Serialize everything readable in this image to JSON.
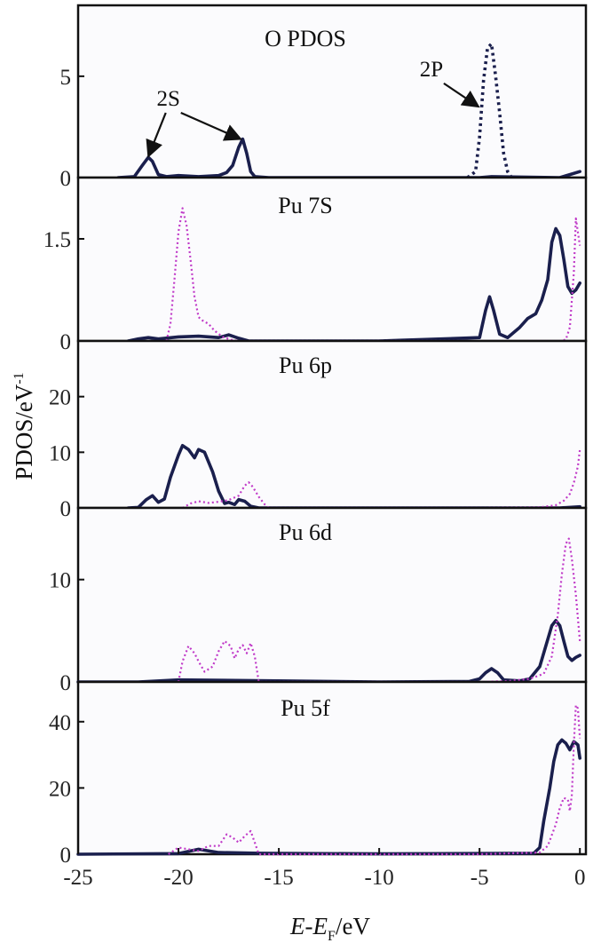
{
  "chart_data": {
    "type": "line",
    "title": "",
    "xlabel": {
      "italic": "E",
      "dash": "-",
      "italic2": "E",
      "sub": "F",
      "unit": "/eV"
    },
    "ylabel": {
      "main": "PDOS/eV",
      "sup": "-1"
    },
    "xlim": [
      -25,
      0.3
    ],
    "x_ticks": [
      -25,
      -20,
      -15,
      -10,
      -5,
      0
    ],
    "x_tick_labels": [
      "-25",
      "-20",
      "-15",
      "-10",
      "-5",
      "0"
    ],
    "colors": {
      "solid": "#1a1f4d",
      "dotted": "#c03ac8",
      "dotted_dark": "#1a1f4d",
      "frame": "#111111"
    },
    "panels": [
      {
        "name": "o-pdos",
        "label": "O PDOS",
        "ylim": [
          0,
          8.5
        ],
        "y_ticks": [
          0,
          5
        ],
        "y_tick_labels": [
          "0",
          "5"
        ],
        "annotations": [
          {
            "text": "2S",
            "x": -20.5,
            "y": 3.55,
            "arrows_to": [
              [
                -21.5,
                1.05
              ],
              [
                -16.9,
                1.9
              ]
            ]
          },
          {
            "text": "2P",
            "x": -7.4,
            "y": 5.0,
            "arrows_to": [
              [
                -5.05,
                3.5
              ]
            ]
          }
        ],
        "series": [
          {
            "name": "O 2s (solid)",
            "style": "solid",
            "color": "#1a1f4d",
            "x": [
              -23,
              -22.2,
              -21.8,
              -21.5,
              -21.3,
              -21.0,
              -20.6,
              -20.0,
              -19.0,
              -18.0,
              -17.6,
              -17.3,
              -17.0,
              -16.8,
              -16.6,
              -16.4,
              -16.2,
              -15.5,
              -10,
              -5,
              -4.4,
              -1.0,
              -0.5,
              0
            ],
            "y": [
              0,
              0.05,
              0.6,
              1.0,
              0.8,
              0.15,
              0.05,
              0.1,
              0.05,
              0.1,
              0.25,
              0.6,
              1.5,
              1.9,
              1.2,
              0.3,
              0.05,
              0,
              0,
              0,
              0.05,
              0,
              0.15,
              0.3
            ]
          },
          {
            "name": "O 2p (dotted)",
            "style": "dotted",
            "color": "#1a1f4d",
            "x": [
              -5.6,
              -5.2,
              -5.0,
              -4.8,
              -4.6,
              -4.4,
              -4.2,
              -4.0,
              -3.8,
              -3.6,
              -3.4
            ],
            "y": [
              0,
              0.3,
              2.0,
              4.8,
              6.4,
              6.6,
              5.0,
              3.2,
              1.2,
              0.3,
              0
            ]
          }
        ]
      },
      {
        "name": "pu-7s",
        "label": "Pu 7S",
        "ylim": [
          0,
          2.4
        ],
        "y_ticks": [
          0,
          1.5
        ],
        "y_tick_labels": [
          "0",
          "1.5"
        ],
        "annotations": [],
        "series": [
          {
            "name": "Pu 7s (solid)",
            "style": "solid",
            "color": "#1a1f4d",
            "x": [
              -22.5,
              -22,
              -21.5,
              -21,
              -20,
              -19,
              -18,
              -17.5,
              -17,
              -16.5,
              -15,
              -10,
              -5,
              -4.7,
              -4.5,
              -4.3,
              -4.0,
              -3.6,
              -3.0,
              -2.6,
              -2.2,
              -1.9,
              -1.6,
              -1.4,
              -1.2,
              -1.0,
              -0.8,
              -0.6,
              -0.4,
              -0.2,
              0
            ],
            "y": [
              0,
              0.03,
              0.05,
              0.03,
              0.06,
              0.07,
              0.05,
              0.09,
              0.04,
              0,
              0,
              0,
              0.05,
              0.45,
              0.65,
              0.45,
              0.1,
              0.05,
              0.2,
              0.33,
              0.4,
              0.6,
              0.9,
              1.45,
              1.65,
              1.55,
              1.2,
              0.8,
              0.7,
              0.75,
              0.85
            ]
          },
          {
            "name": "Pu 7s (dotted)",
            "style": "dotted",
            "color": "#c03ac8",
            "x": [
              -20.6,
              -20.4,
              -20.2,
              -20.0,
              -19.8,
              -19.6,
              -19.4,
              -19.2,
              -19.0,
              -18.8,
              -18.5,
              -18.2,
              -17.8,
              -17.4,
              -17.0,
              -1.0,
              -0.7,
              -0.5,
              -0.3,
              -0.2,
              0
            ],
            "y": [
              0,
              0.25,
              0.9,
              1.6,
              1.95,
              1.7,
              1.2,
              0.65,
              0.35,
              0.3,
              0.25,
              0.15,
              0.06,
              0.02,
              0,
              0,
              0.02,
              0.2,
              1.0,
              1.8,
              1.4
            ]
          }
        ]
      },
      {
        "name": "pu-6p",
        "label": "Pu 6p",
        "ylim": [
          0,
          30
        ],
        "y_ticks": [
          0,
          10,
          20
        ],
        "y_tick_labels": [
          "0",
          "10",
          "20"
        ],
        "annotations": [],
        "series": [
          {
            "name": "Pu 6p (solid)",
            "style": "solid",
            "color": "#1a1f4d",
            "x": [
              -22.5,
              -22,
              -21.6,
              -21.3,
              -21.0,
              -20.7,
              -20.4,
              -20.0,
              -19.8,
              -19.5,
              -19.2,
              -19.0,
              -18.7,
              -18.3,
              -18.0,
              -17.7,
              -17.5,
              -17.2,
              -17.0,
              -16.7,
              -16.4,
              -16.0,
              -10,
              -5,
              -1,
              0
            ],
            "y": [
              0,
              0.1,
              1.5,
              2.2,
              1.0,
              1.6,
              5.5,
              9.5,
              11.2,
              10.5,
              9.0,
              10.5,
              10.0,
              6.5,
              3.0,
              0.8,
              1.0,
              0.6,
              1.5,
              1.2,
              0.3,
              0,
              0,
              0,
              0,
              0.2
            ]
          },
          {
            "name": "Pu 6p (dotted)",
            "style": "dotted",
            "color": "#c03ac8",
            "x": [
              -19.8,
              -19.4,
              -19.0,
              -18.5,
              -18.0,
              -17.5,
              -17.0,
              -16.7,
              -16.5,
              -16.3,
              -16.0,
              -15.7,
              -15.5,
              -5,
              -2,
              -1.2,
              -0.8,
              -0.5,
              -0.3,
              -0.1,
              0
            ],
            "y": [
              0,
              0.8,
              1.2,
              0.9,
              1.1,
              1.4,
              2.2,
              4.0,
              4.6,
              3.8,
              2.0,
              0.6,
              0,
              0,
              0.1,
              0.5,
              1.3,
              2.5,
              4.5,
              7.5,
              10.5
            ]
          }
        ]
      },
      {
        "name": "pu-6d",
        "label": "Pu 6d",
        "ylim": [
          0,
          17
        ],
        "y_ticks": [
          0,
          10
        ],
        "y_tick_labels": [
          "0",
          "10"
        ],
        "annotations": [],
        "series": [
          {
            "name": "Pu 6d (solid)",
            "style": "solid",
            "color": "#1a1f4d",
            "x": [
              -25,
              -22,
              -20,
              -15,
              -10,
              -5.5,
              -5.0,
              -4.7,
              -4.4,
              -4.1,
              -3.8,
              -3.0,
              -2.5,
              -2.0,
              -1.7,
              -1.4,
              -1.2,
              -1.0,
              -0.8,
              -0.6,
              -0.4,
              -0.2,
              0
            ],
            "y": [
              0,
              0,
              0.2,
              0.1,
              0,
              0.05,
              0.3,
              0.9,
              1.3,
              0.9,
              0.2,
              0.1,
              0.3,
              1.5,
              3.5,
              5.5,
              6.0,
              5.5,
              4.0,
              2.5,
              2.1,
              2.4,
              2.6
            ]
          },
          {
            "name": "Pu 6d (dotted)",
            "style": "dotted",
            "color": "#c03ac8",
            "x": [
              -20.0,
              -19.8,
              -19.5,
              -19.2,
              -19.0,
              -18.7,
              -18.3,
              -18.0,
              -17.7,
              -17.4,
              -17.2,
              -17.0,
              -16.8,
              -16.6,
              -16.4,
              -16.2,
              -16.0,
              -5,
              -3.5,
              -2.5,
              -1.8,
              -1.4,
              -1.1,
              -0.9,
              -0.7,
              -0.55,
              -0.4,
              -0.2,
              0
            ],
            "y": [
              0,
              2.0,
              3.5,
              2.8,
              2.0,
              1.0,
              1.5,
              3.0,
              4.0,
              3.5,
              2.3,
              3.2,
              3.6,
              2.8,
              3.8,
              2.5,
              0,
              0,
              0.1,
              0.3,
              0.8,
              2.5,
              6.5,
              10.5,
              13.5,
              14.0,
              12.0,
              8.5,
              4.0
            ]
          }
        ]
      },
      {
        "name": "pu-5f",
        "label": "Pu 5f",
        "ylim": [
          0,
          52
        ],
        "y_ticks": [
          0,
          20,
          40
        ],
        "y_tick_labels": [
          "0",
          "20",
          "40"
        ],
        "annotations": [],
        "series": [
          {
            "name": "Pu 5f (solid)",
            "style": "solid",
            "color": "#1a1f4d",
            "x": [
              -25,
              -20,
              -19.0,
              -18.0,
              -16.0,
              -10,
              -2.3,
              -2.0,
              -1.8,
              -1.5,
              -1.3,
              -1.1,
              -0.9,
              -0.7,
              -0.5,
              -0.3,
              -0.1,
              0
            ],
            "y": [
              0,
              0.2,
              1.5,
              0.5,
              0.3,
              0.1,
              0.3,
              2.0,
              10.0,
              20.0,
              28.0,
              33.0,
              34.5,
              33.5,
              31.5,
              34.0,
              33.0,
              29.0
            ]
          },
          {
            "name": "Pu 5f (dotted)",
            "style": "dotted",
            "color": "#c03ac8",
            "x": [
              -20.5,
              -20.0,
              -19.5,
              -19.0,
              -18.5,
              -18.0,
              -17.6,
              -17.3,
              -17.0,
              -16.7,
              -16.4,
              -16.2,
              -16.0,
              -5,
              -2.0,
              -1.6,
              -1.2,
              -1.0,
              -0.8,
              -0.6,
              -0.5,
              -0.4,
              -0.3,
              -0.2,
              -0.1,
              0
            ],
            "y": [
              0,
              2.0,
              1.5,
              1.0,
              2.5,
              2.5,
              6.0,
              5.0,
              3.5,
              5.5,
              7.0,
              3.5,
              0,
              0,
              0.5,
              2.5,
              9.0,
              14.0,
              17.0,
              16.5,
              13.0,
              18.0,
              33.0,
              45.0,
              44.0,
              35.0
            ]
          }
        ]
      }
    ]
  }
}
